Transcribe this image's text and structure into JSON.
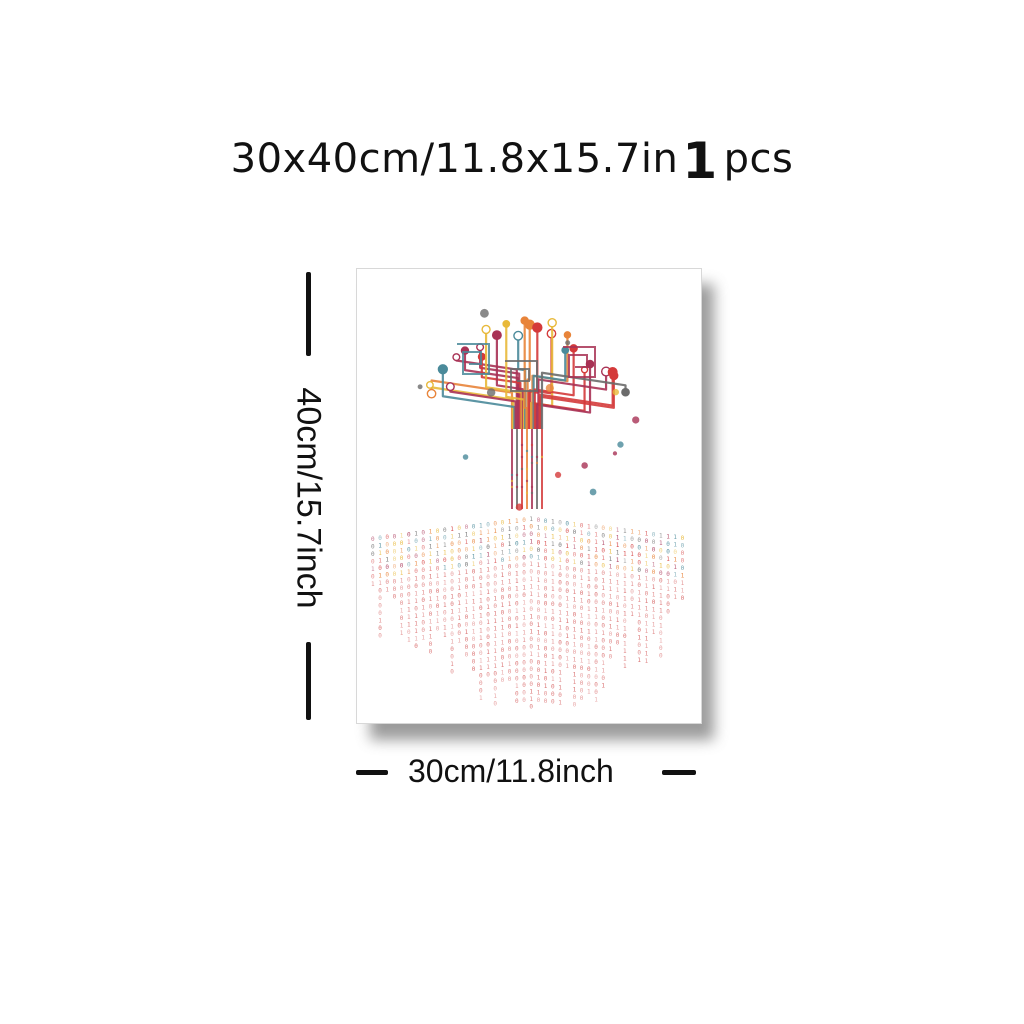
{
  "title": {
    "size_text": "30x40cm/11.8x15.7in",
    "quantity": "1",
    "unit": "pcs"
  },
  "dimensions": {
    "height_label": "40cm/15.7inch",
    "width_label": "30cm/11.8inch"
  },
  "artwork": {
    "subject": "circuit-board-tree",
    "palette": [
      "#d43a3a",
      "#e8843a",
      "#a83255",
      "#6b6b6b",
      "#e8b93a",
      "#4a8a9a"
    ]
  }
}
